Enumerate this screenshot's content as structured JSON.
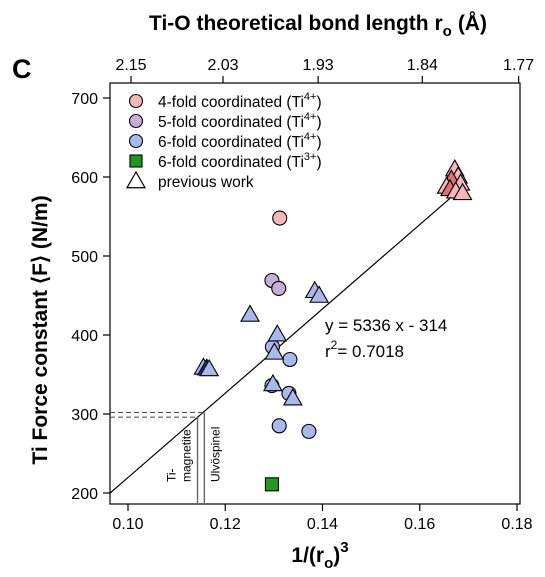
{
  "chart_data": {
    "type": "scatter",
    "panel_label": "C",
    "title_top": "Ti-O theoretical bond length r",
    "title_top_sub": "o",
    "title_top_unit": "(Å)",
    "xlabel_base": "1/(r",
    "xlabel_sub": "o",
    "xlabel_close": ")",
    "xlabel_sup": "3",
    "ylabel": "Ti Force constant ⟨F⟩  (N/m)",
    "xlim": [
      0.1,
      0.18
    ],
    "ylim": [
      200,
      700
    ],
    "x_ticks": [
      "0.10",
      "0.12",
      "0.14",
      "0.16",
      "0.18"
    ],
    "x_tick_values": [
      0.1,
      0.12,
      0.14,
      0.16,
      0.18
    ],
    "y_ticks": [
      "200",
      "300",
      "400",
      "500",
      "600",
      "700"
    ],
    "y_tick_values": [
      200,
      300,
      400,
      500,
      600,
      700
    ],
    "top_ticks": [
      "2.15",
      "2.03",
      "1.93",
      "1.84",
      "1.77"
    ],
    "top_tick_values": [
      2.15,
      2.03,
      1.93,
      1.84,
      1.77
    ],
    "legend": [
      {
        "text": "4-fold coordinated (Ti",
        "sup": "4+",
        "close": ")",
        "marker": "circle",
        "color": "#f4b8b8"
      },
      {
        "text": "5-fold coordinated (Ti",
        "sup": "4+",
        "close": ")",
        "marker": "circle",
        "color": "#c8aed6"
      },
      {
        "text": "6-fold coordinated (Ti",
        "sup": "4+",
        "close": ")",
        "marker": "circle",
        "color": "#a9b9ee"
      },
      {
        "text": "6-fold coordinated (Ti",
        "sup": "3+",
        "close": ")",
        "marker": "square",
        "color": "#1f9a1f"
      },
      {
        "text": "previous work",
        "sup": "",
        "close": "",
        "marker": "triangle",
        "color": "#ffffff"
      }
    ],
    "fit": {
      "slope": 5336,
      "intercept": -314,
      "equation": "y = 5336 x - 314",
      "r2_label": "r",
      "r2_sup": "2",
      "r2_value": "= 0.7018"
    },
    "series": [
      {
        "name": "4-fold coordinated (Ti4+)",
        "marker": "circle",
        "color": "#f4b8b8",
        "points": [
          [
            0.1312,
            548
          ]
        ]
      },
      {
        "name": "5-fold coordinated (Ti4+)",
        "marker": "circle",
        "color": "#c8aed6",
        "points": [
          [
            0.1296,
            469
          ],
          [
            0.131,
            459
          ]
        ]
      },
      {
        "name": "6-fold coordinated (Ti4+)",
        "marker": "circle",
        "color": "#a9b9ee",
        "points": [
          [
            0.1297,
            385
          ],
          [
            0.1333,
            369
          ],
          [
            0.1296,
            336
          ],
          [
            0.1331,
            326
          ],
          [
            0.1311,
            285
          ],
          [
            0.1372,
            278
          ]
        ]
      },
      {
        "name": "6-fold coordinated (Ti3+)",
        "marker": "square",
        "color": "#1f9a1f",
        "points": [
          [
            0.1296,
            211
          ]
        ]
      },
      {
        "name": "previous work",
        "marker": "triangle",
        "color": "#ffffff",
        "points": [
          {
            "x": 0.1251,
            "y": 426,
            "fill": "#a9b9ee"
          },
          {
            "x": 0.1307,
            "y": 401,
            "fill": "#a9b9ee"
          },
          {
            "x": 0.1301,
            "y": 378,
            "fill": "#a9b9ee"
          },
          {
            "x": 0.1298,
            "y": 338,
            "fill": "#a9b9ee"
          },
          {
            "x": 0.1339,
            "y": 320,
            "fill": "#a9b9ee"
          },
          {
            "x": 0.1384,
            "y": 456,
            "fill": "#a9b9ee"
          },
          {
            "x": 0.1393,
            "y": 450,
            "fill": "#a9b9ee"
          },
          {
            "x": 0.1155,
            "y": 359,
            "fill": "#a9b9ee"
          },
          {
            "x": 0.1162,
            "y": 358,
            "fill": "#23399a"
          },
          {
            "x": 0.1167,
            "y": 357,
            "fill": "#a9b9ee"
          },
          {
            "x": 0.1672,
            "y": 610,
            "fill": "#f4b8b8"
          },
          {
            "x": 0.1679,
            "y": 601,
            "fill": "#f4b8b8"
          },
          {
            "x": 0.1665,
            "y": 597,
            "fill": "#e07070"
          },
          {
            "x": 0.1684,
            "y": 592,
            "fill": "#f4b8b8"
          },
          {
            "x": 0.1655,
            "y": 588,
            "fill": "#f4b8b8"
          },
          {
            "x": 0.1662,
            "y": 585,
            "fill": "#e07070"
          },
          {
            "x": 0.1674,
            "y": 582,
            "fill": "#f4b8b8"
          },
          {
            "x": 0.1688,
            "y": 580,
            "fill": "#f4b8b8"
          }
        ]
      }
    ],
    "reference_minerals": [
      {
        "name": "Ti-magnetite",
        "line1": "Ti-",
        "line2": "magnetite",
        "x": 0.1143,
        "y": 296
      },
      {
        "name": "Ulvöspinel",
        "line1": "Ulvöspinel",
        "line2": "",
        "x": 0.1157,
        "y": 302
      }
    ]
  }
}
